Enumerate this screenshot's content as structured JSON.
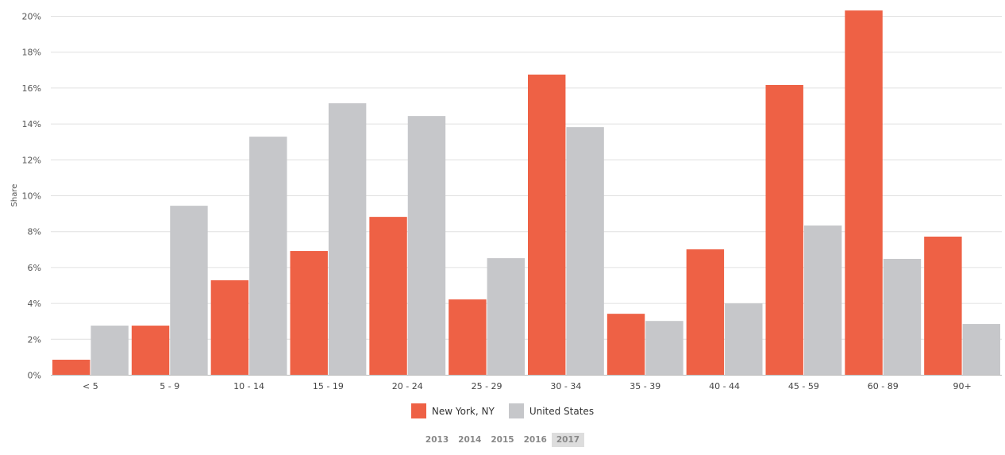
{
  "chart_data": {
    "type": "bar",
    "ylabel": "Share",
    "xlabel": "",
    "ylim": [
      0,
      20
    ],
    "yticks": [
      "0%",
      "2%",
      "4%",
      "6%",
      "8%",
      "10%",
      "12%",
      "14%",
      "16%",
      "18%",
      "20%"
    ],
    "grid": true,
    "legend_position": "bottom",
    "categories": [
      "< 5",
      "5 - 9",
      "10 - 14",
      "15 - 19",
      "20 - 24",
      "25 - 29",
      "30 - 34",
      "35 - 39",
      "40 - 44",
      "45 - 59",
      "60 - 89",
      "90+"
    ],
    "series": [
      {
        "name": "New York, NY",
        "color": "#ee6145",
        "values": [
          0.84,
          2.74,
          5.27,
          6.9,
          8.8,
          4.2,
          16.73,
          3.4,
          6.99,
          16.15,
          20.3,
          7.7
        ]
      },
      {
        "name": "United States",
        "color": "#c6c7ca",
        "values": [
          2.74,
          9.42,
          13.27,
          15.13,
          14.42,
          6.5,
          13.8,
          3.0,
          3.98,
          8.32,
          6.46,
          2.83
        ]
      }
    ]
  },
  "years": {
    "options": [
      "2013",
      "2014",
      "2015",
      "2016",
      "2017"
    ],
    "selected": "2017"
  }
}
